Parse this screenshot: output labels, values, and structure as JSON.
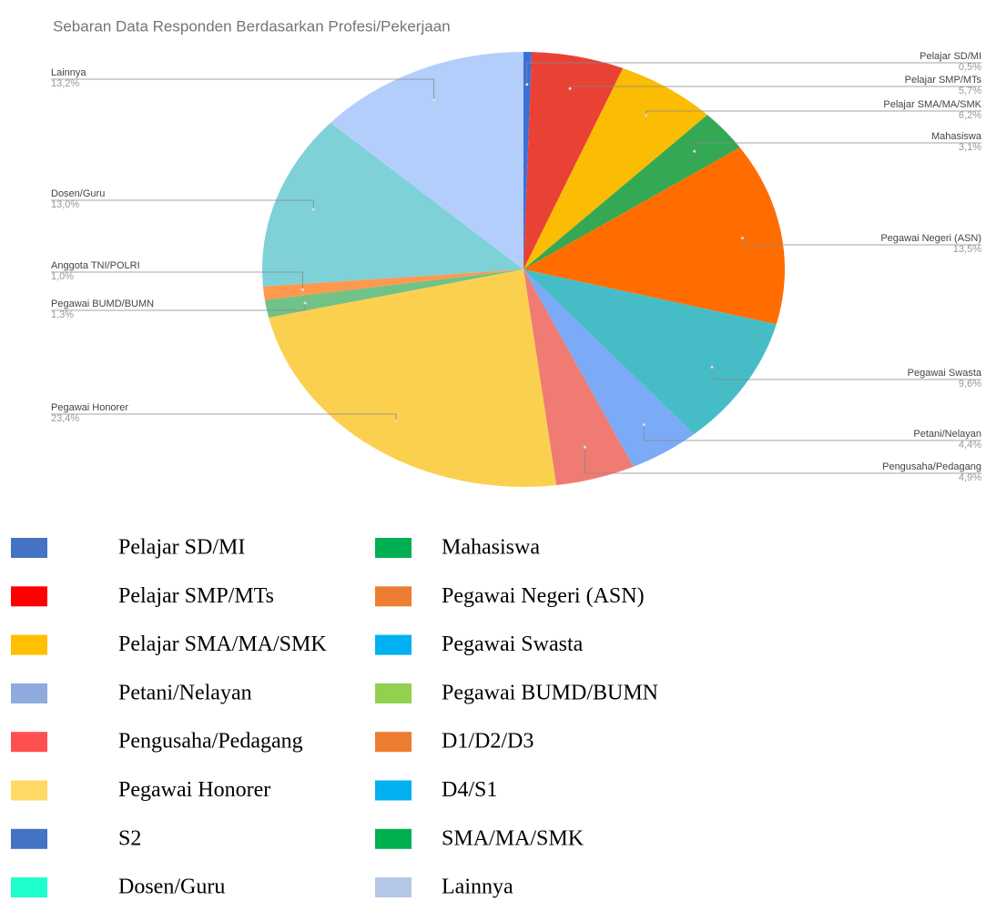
{
  "chart_data": {
    "type": "pie",
    "title": "Sebaran Data Responden Berdasarkan Profesi/Pekerjaan",
    "categories": [
      "Pelajar SD/MI",
      "Pelajar SMP/MTs",
      "Pelajar SMA/MA/SMK",
      "Mahasiswa",
      "Pegawai Negeri (ASN)",
      "Pegawai Swasta",
      "Petani/Nelayan",
      "Pengusaha/Pedagang",
      "Pegawai Honorer",
      "Pegawai BUMD/BUMN",
      "Anggota TNI/POLRI",
      "Dosen/Guru",
      "Lainnya"
    ],
    "values": [
      0.5,
      5.7,
      6.2,
      3.1,
      13.5,
      9.6,
      4.4,
      4.9,
      23.4,
      1.3,
      1.0,
      13.0,
      13.2
    ],
    "value_labels": [
      "0,5%",
      "5,7%",
      "6,2%",
      "3,1%",
      "13,5%",
      "9,6%",
      "4,4%",
      "4,9%",
      "23,4%",
      "1,3%",
      "1,0%",
      "13,0%",
      "13,2%"
    ],
    "colors": [
      "#3d6fd8",
      "#e94235",
      "#fbbc04",
      "#34a853",
      "#ff6d01",
      "#46bdc6",
      "#7baaf7",
      "#f07b72",
      "#fcd04f",
      "#71c287",
      "#ff994d",
      "#7ed1d7",
      "#b3cefb"
    ],
    "legend": [
      {
        "name": "Pelajar SD/MI",
        "color": "#4472c4"
      },
      {
        "name": "Pelajar SMP/MTs",
        "color": "#ff0000"
      },
      {
        "name": "Pelajar SMA/MA/SMK",
        "color": "#ffc000"
      },
      {
        "name": "Petani/Nelayan",
        "color": "#8faadc"
      },
      {
        "name": "Pengusaha/Pedagang",
        "color": "#ff5050"
      },
      {
        "name": "Pegawai Honorer",
        "color": "#ffd966"
      },
      {
        "name": "S2",
        "color": "#4472c4"
      },
      {
        "name": "Dosen/Guru",
        "color": "#1dffcc"
      },
      {
        "name": "Mahasiswa",
        "color": "#00b050"
      },
      {
        "name": "Pegawai Negeri (ASN)",
        "color": "#ed7d31"
      },
      {
        "name": "Pegawai Swasta",
        "color": "#00b0f0"
      },
      {
        "name": "Pegawai BUMD/BUMN",
        "color": "#92d050"
      },
      {
        "name": "D1/D2/D3",
        "color": "#ed7d31"
      },
      {
        "name": "D4/S1",
        "color": "#00b0f0"
      },
      {
        "name": "SMA/MA/SMK",
        "color": "#00b050"
      },
      {
        "name": "Lainnya",
        "color": "#b4c7e7"
      }
    ]
  }
}
